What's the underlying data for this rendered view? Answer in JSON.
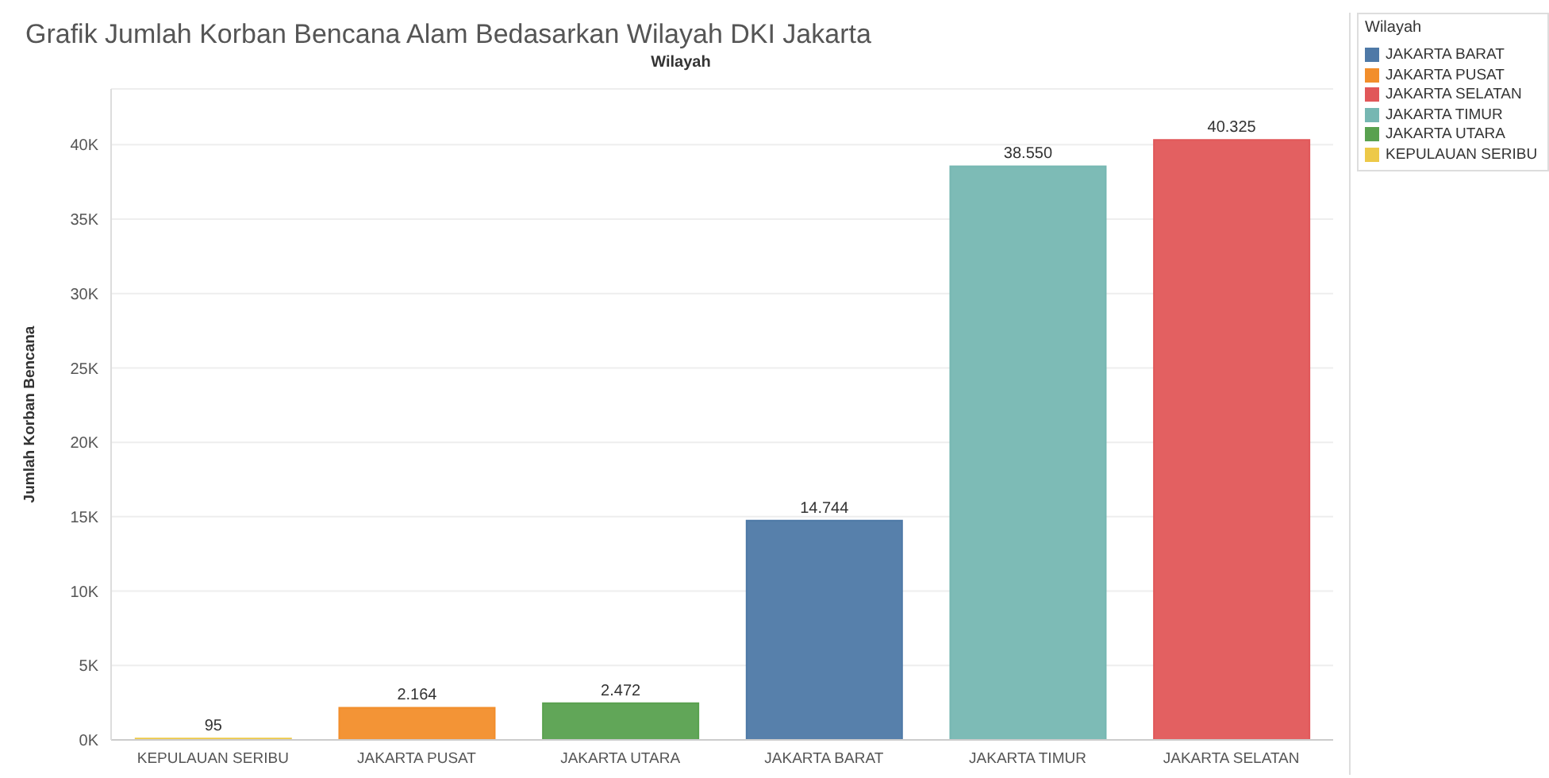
{
  "chart_data": {
    "type": "bar",
    "title": "Grafik Jumlah Korban Bencana Alam Bedasarkan Wilayah DKI Jakarta",
    "xlabel": "Wilayah",
    "ylabel": "Jumlah Korban Bencana",
    "legend_title": "Wilayah",
    "legend": "top right",
    "grid": "y",
    "stacked": true,
    "categories": [
      "KEPULAUAN SERIBU",
      "JAKARTA PUSAT",
      "JAKARTA UTARA",
      "JAKARTA BARAT",
      "JAKARTA TIMUR",
      "JAKARTA SELATAN"
    ],
    "series": [
      {
        "name": "JAKARTA BARAT",
        "color": "#4e79a7",
        "values": [
          null,
          null,
          null,
          14744,
          null,
          null
        ],
        "value_labels": [
          null,
          null,
          null,
          "14.744",
          null,
          null
        ]
      },
      {
        "name": "JAKARTA PUSAT",
        "color": "#f28e2b",
        "values": [
          null,
          2164,
          null,
          null,
          null,
          null
        ],
        "value_labels": [
          null,
          "2.164",
          null,
          null,
          null,
          null
        ]
      },
      {
        "name": "JAKARTA SELATAN",
        "color": "#e15759",
        "values": [
          null,
          null,
          null,
          null,
          null,
          40325
        ],
        "value_labels": [
          null,
          null,
          null,
          null,
          null,
          "40.325"
        ]
      },
      {
        "name": "JAKARTA TIMUR",
        "color": "#76b7b2",
        "values": [
          null,
          null,
          null,
          null,
          38550,
          null
        ],
        "value_labels": [
          null,
          null,
          null,
          null,
          "38.550",
          null
        ]
      },
      {
        "name": "JAKARTA UTARA",
        "color": "#59a14f",
        "values": [
          null,
          null,
          2472,
          null,
          null,
          null
        ],
        "value_labels": [
          null,
          null,
          "2.472",
          null,
          null,
          null
        ]
      },
      {
        "name": "KEPULAUAN SERIBU",
        "color": "#edc948",
        "values": [
          95,
          null,
          null,
          null,
          null,
          null
        ],
        "value_labels": [
          "95",
          null,
          null,
          null,
          null,
          null
        ]
      }
    ],
    "ylim": [
      0,
      43750
    ],
    "yticks": [
      {
        "value": 0,
        "label": "0K"
      },
      {
        "value": 5000,
        "label": "5K"
      },
      {
        "value": 10000,
        "label": "10K"
      },
      {
        "value": 15000,
        "label": "15K"
      },
      {
        "value": 20000,
        "label": "20K"
      },
      {
        "value": 25000,
        "label": "25K"
      },
      {
        "value": 30000,
        "label": "30K"
      },
      {
        "value": 35000,
        "label": "35K"
      },
      {
        "value": 40000,
        "label": "40K"
      }
    ]
  }
}
